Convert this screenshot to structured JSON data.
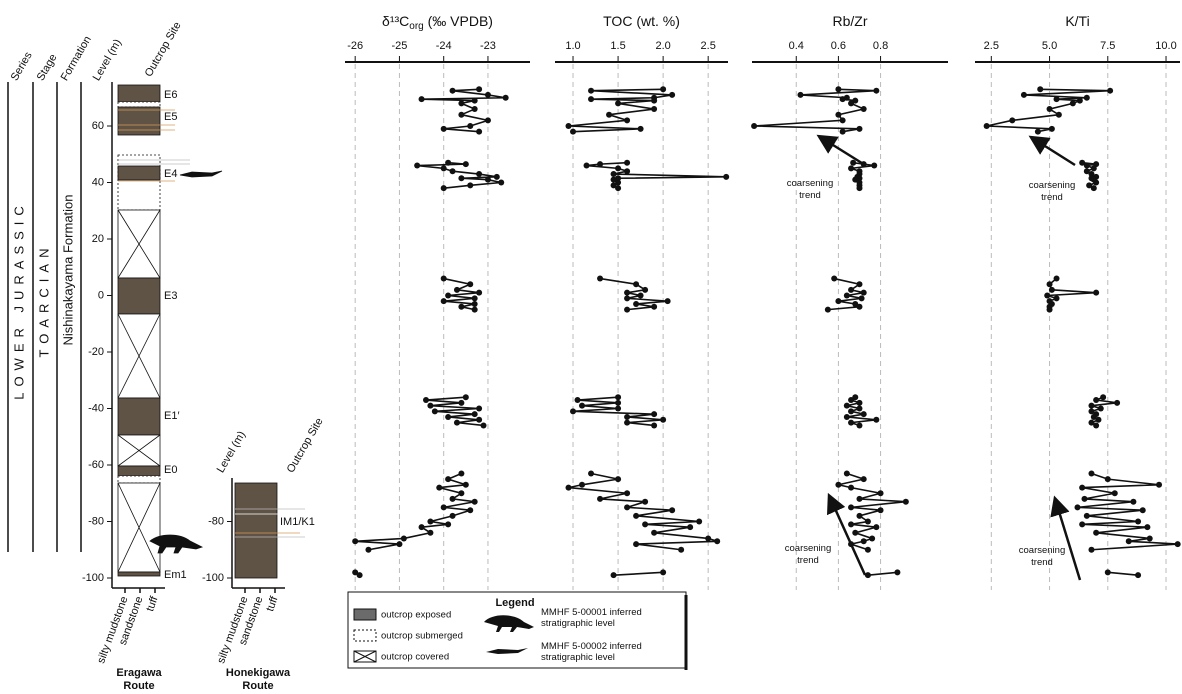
{
  "chart_data": [
    {
      "type": "line",
      "title": "δ¹³C",
      "title_sub": "org",
      "title_rest": " (‰ VPDB)",
      "xlim": [
        -26.23,
        -22.05
      ],
      "xticks": [
        -26,
        -25,
        -24,
        -23
      ],
      "grid": true,
      "color": "#111111",
      "values": [
        -23.2,
        -23.8,
        -23.0,
        -22.6,
        -24.5,
        -23.3,
        -23.6,
        -23.3,
        -23.6,
        -23.0,
        -23.4,
        -24.0,
        -23.2,
        null,
        -23.9,
        -23.5,
        -24.6,
        -24.0,
        -23.8,
        -23.2,
        -22.8,
        -23.6,
        -23.0,
        -22.7,
        -23.4,
        -24.0,
        null,
        -24.0,
        -23.4,
        -23.7,
        -23.2,
        -23.9,
        -23.3,
        -24.0,
        -23.3,
        -23.6,
        -23.3,
        null,
        -23.5,
        -24.4,
        -23.6,
        -24.3,
        -23.2,
        -24.2,
        -23.3,
        -23.9,
        -23.2,
        -23.7,
        -23.1,
        null,
        -23.6,
        -23.9,
        -23.5,
        -24.1,
        -23.6,
        -23.8,
        -23.3,
        -24.0,
        -23.4,
        -23.8,
        -24.3,
        -23.9,
        -24.5,
        -24.3,
        -24.9,
        -26.0,
        -25.0,
        -25.7,
        null,
        -26.0,
        -25.9
      ]
    },
    {
      "type": "line",
      "title": "TOC (wt. %)",
      "xlim": [
        0.8,
        2.72
      ],
      "xticks": [
        {
          "value": 1,
          "label": "1.0"
        },
        1.5,
        {
          "value": 2,
          "label": "2.0"
        },
        2.5
      ],
      "grid": true,
      "color": "#111111",
      "values": [
        2.0,
        1.2,
        2.1,
        1.9,
        1.2,
        1.9,
        1.5,
        1.9,
        1.4,
        1.6,
        0.95,
        1.75,
        1.0,
        null,
        1.6,
        1.3,
        1.15,
        1.5,
        1.6,
        1.45,
        2.7,
        1.5,
        1.45,
        1.5,
        1.45,
        1.5,
        null,
        1.3,
        1.7,
        1.8,
        1.6,
        1.75,
        1.6,
        2.05,
        1.7,
        1.9,
        1.6,
        null,
        1.5,
        1.05,
        1.5,
        1.1,
        1.5,
        1.0,
        1.9,
        1.6,
        2.0,
        1.6,
        1.9,
        null,
        1.2,
        1.5,
        1.1,
        0.95,
        1.6,
        1.3,
        1.8,
        1.6,
        2.1,
        1.7,
        2.4,
        1.8,
        2.3,
        1.9,
        2.5,
        2.6,
        1.7,
        2.2,
        null,
        2.0,
        1.45
      ]
    },
    {
      "type": "line",
      "title": "Rb/Zr",
      "xlim": [
        0.19,
        1.12
      ],
      "xticks": [
        0.4,
        0.6,
        0.8
      ],
      "grid": true,
      "color": "#111111",
      "annotations": [
        [
          "coarsening",
          "trend"
        ],
        [
          "coarsening",
          "trend"
        ]
      ],
      "values": [
        0.6,
        0.78,
        0.42,
        0.64,
        0.62,
        0.68,
        0.66,
        0.72,
        0.6,
        0.62,
        0.2,
        0.7,
        0.62,
        null,
        0.67,
        0.72,
        0.77,
        0.66,
        0.7,
        0.7,
        0.69,
        0.7,
        0.68,
        0.7,
        0.7,
        0.7,
        null,
        0.58,
        0.7,
        0.66,
        0.72,
        0.64,
        0.71,
        0.6,
        0.68,
        0.7,
        0.55,
        null,
        0.68,
        0.66,
        0.7,
        0.64,
        0.7,
        0.66,
        0.72,
        0.64,
        0.78,
        0.66,
        0.7,
        null,
        0.64,
        0.72,
        0.6,
        0.66,
        0.8,
        0.7,
        0.92,
        0.66,
        0.8,
        0.7,
        0.74,
        0.66,
        0.78,
        0.68,
        0.76,
        0.72,
        0.66,
        0.74,
        null,
        0.88,
        0.74
      ]
    },
    {
      "type": "line",
      "title": "K/Ti",
      "xlim": [
        1.8,
        10.6
      ],
      "xticks": [
        2.5,
        {
          "value": 5,
          "label": "5.0"
        },
        7.5,
        {
          "value": 10,
          "label": "10.0"
        }
      ],
      "grid": true,
      "color": "#111111",
      "annotations": [
        [
          "coarsening",
          "trend"
        ],
        [
          "coarsening",
          "trend"
        ]
      ],
      "values": [
        4.6,
        7.6,
        3.9,
        6.6,
        5.3,
        6.3,
        6.0,
        5.0,
        5.4,
        3.4,
        2.3,
        5.1,
        4.5,
        null,
        6.4,
        7.0,
        6.6,
        6.9,
        6.6,
        6.8,
        7.0,
        6.8,
        6.9,
        7.0,
        6.7,
        6.9,
        null,
        5.3,
        5.0,
        5.1,
        7.0,
        4.9,
        5.3,
        5.0,
        5.1,
        5.0,
        5.0,
        null,
        7.3,
        7.0,
        7.9,
        6.8,
        7.2,
        6.8,
        7.0,
        6.9,
        7.1,
        6.8,
        7.0,
        null,
        6.8,
        7.5,
        9.7,
        6.4,
        7.8,
        6.5,
        8.6,
        6.2,
        9.0,
        6.6,
        8.8,
        6.4,
        9.2,
        7.0,
        9.3,
        8.4,
        10.5,
        6.8,
        null,
        7.5,
        8.8
      ]
    }
  ],
  "levels": [
    73,
    72.5,
    71,
    70,
    69.5,
    69,
    68,
    66,
    64,
    62,
    60,
    59,
    58,
    null,
    47,
    46.5,
    46,
    45,
    44,
    43,
    42,
    41.5,
    41,
    40,
    39,
    38,
    null,
    6,
    4,
    2,
    1,
    0,
    -1,
    -2,
    -3,
    -4,
    -5,
    null,
    -36,
    -37,
    -38,
    -39,
    -40,
    -41,
    -42,
    -43,
    -44,
    -45,
    -46,
    null,
    -63,
    -65,
    -67,
    -68,
    -70,
    -72,
    -73,
    -75,
    -76,
    -78,
    -80,
    -81,
    -82,
    -84,
    -86,
    -87,
    -88,
    -90,
    null,
    -98,
    -99
  ],
  "column": {
    "headers": [
      "Series",
      "Stage",
      "Formation",
      "Level (m)",
      "Outcrop Site"
    ],
    "series": "LOWER JURASSIC",
    "stage": "TOARCIAN",
    "formation": "Nishinakayama Formation",
    "ylim": [
      -100,
      60
    ],
    "level_ticks": [
      60,
      40,
      20,
      0,
      -20,
      -40,
      -60,
      -80,
      -100
    ],
    "sites": [
      "E6",
      "E5",
      "E4",
      "E3",
      "E1′",
      "E0",
      "Em1"
    ],
    "lithology": [
      "silty mudstone",
      "sandstone",
      "tuff"
    ],
    "route": [
      "Eragawa",
      "Route"
    ]
  },
  "column2": {
    "headers": [
      "Level (m)",
      "Outcrop Site"
    ],
    "level_ticks": [
      -80,
      -100
    ],
    "site": "IM1/K1",
    "lithology": [
      "silty mudstone",
      "sandstone",
      "tuff"
    ],
    "route": [
      "Honekigawa",
      "Route"
    ]
  },
  "legend": {
    "title": "Legend",
    "items": [
      "outcrop exposed",
      "outcrop submerged",
      "outcrop covered"
    ],
    "fossils": [
      [
        "MMHF 5-00001 inferred",
        "stratigraphic level"
      ],
      [
        "MMHF 5-00002 inferred",
        "stratigraphic level"
      ]
    ]
  }
}
